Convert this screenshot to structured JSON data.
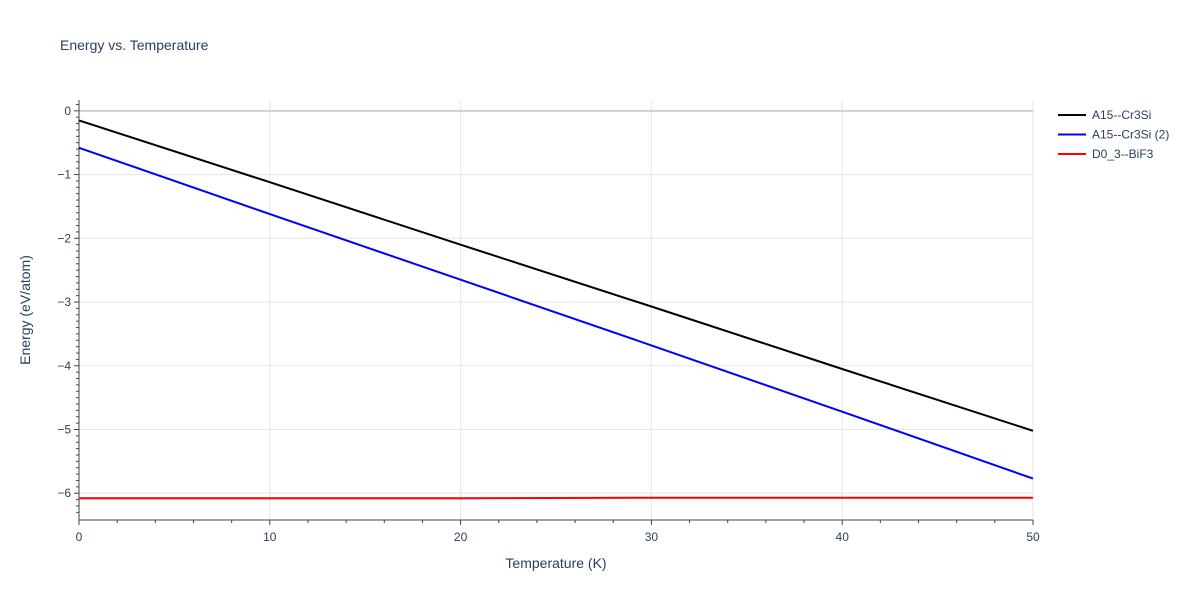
{
  "chart_data": {
    "type": "line",
    "title": "Energy vs. Temperature",
    "xlabel": "Temperature (K)",
    "ylabel": "Energy (eV/atom)",
    "xlim": [
      0,
      50
    ],
    "ylim": [
      -6.42,
      0.17
    ],
    "x_ticks": [
      0,
      10,
      20,
      30,
      40,
      50
    ],
    "y_ticks": [
      0,
      -1,
      -2,
      -3,
      -4,
      -5,
      -6
    ],
    "x_tick_labels": [
      "0",
      "10",
      "20",
      "30",
      "40",
      "50"
    ],
    "y_tick_labels": [
      "0",
      "−1",
      "−2",
      "−3",
      "−4",
      "−5",
      "−6"
    ],
    "grid": true,
    "legend_position": "top-right",
    "series": [
      {
        "name": "A15--Cr3Si",
        "color": "#000000",
        "x": [
          0,
          10,
          20,
          30,
          40,
          50
        ],
        "y": [
          -0.15,
          -1.12,
          -2.1,
          -3.07,
          -4.05,
          -5.02
        ]
      },
      {
        "name": "A15--Cr3Si (2)",
        "color": "#0000ff",
        "x": [
          0,
          10,
          20,
          30,
          40,
          50
        ],
        "y": [
          -0.58,
          -1.62,
          -2.65,
          -3.68,
          -4.72,
          -5.77
        ]
      },
      {
        "name": "D0_3--BiF3",
        "color": "#ff0000",
        "x": [
          0,
          10,
          20,
          30,
          40,
          50
        ],
        "y": [
          -6.08,
          -6.08,
          -6.08,
          -6.07,
          -6.07,
          -6.07
        ]
      }
    ]
  }
}
